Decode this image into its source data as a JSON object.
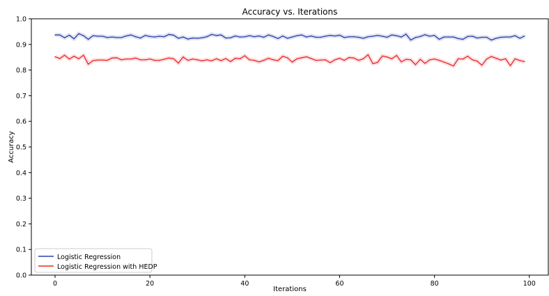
{
  "chart_data": {
    "type": "line",
    "title": "Accuracy vs. Iterations",
    "xlabel": "Iterations",
    "ylabel": "Accuracy",
    "xlim": [
      -5,
      104
    ],
    "ylim": [
      0.0,
      1.0
    ],
    "xticks": [
      0,
      20,
      40,
      60,
      80,
      100
    ],
    "xtick_labels": [
      "0",
      "20",
      "40",
      "60",
      "80",
      "100"
    ],
    "yticks": [
      0.0,
      0.1,
      0.2,
      0.3,
      0.4,
      0.5,
      0.6,
      0.7,
      0.8,
      0.9,
      1.0
    ],
    "ytick_labels": [
      "0.0",
      "0.1",
      "0.2",
      "0.3",
      "0.4",
      "0.5",
      "0.6",
      "0.7",
      "0.8",
      "0.9",
      "1.0"
    ],
    "grid": false,
    "legend": {
      "placement": "bottom-left"
    },
    "x": [
      0,
      1,
      2,
      3,
      4,
      5,
      6,
      7,
      8,
      9,
      10,
      11,
      12,
      13,
      14,
      15,
      16,
      17,
      18,
      19,
      20,
      21,
      22,
      23,
      24,
      25,
      26,
      27,
      28,
      29,
      30,
      31,
      32,
      33,
      34,
      35,
      36,
      37,
      38,
      39,
      40,
      41,
      42,
      43,
      44,
      45,
      46,
      47,
      48,
      49,
      50,
      51,
      52,
      53,
      54,
      55,
      56,
      57,
      58,
      59,
      60,
      61,
      62,
      63,
      64,
      65,
      66,
      67,
      68,
      69,
      70,
      71,
      72,
      73,
      74,
      75,
      76,
      77,
      78,
      79,
      80,
      81,
      82,
      83,
      84,
      85,
      86,
      87,
      88,
      89,
      90,
      91,
      92,
      93,
      94,
      95,
      96,
      97,
      98,
      99
    ],
    "series": [
      {
        "name": "Logistic Regression",
        "color": "#2a3ea8",
        "values": [
          0.937,
          0.937,
          0.926,
          0.936,
          0.922,
          0.942,
          0.934,
          0.92,
          0.934,
          0.932,
          0.932,
          0.927,
          0.929,
          0.927,
          0.927,
          0.933,
          0.937,
          0.93,
          0.925,
          0.935,
          0.931,
          0.929,
          0.932,
          0.93,
          0.939,
          0.936,
          0.924,
          0.929,
          0.921,
          0.925,
          0.924,
          0.926,
          0.93,
          0.939,
          0.935,
          0.937,
          0.925,
          0.926,
          0.933,
          0.929,
          0.93,
          0.934,
          0.93,
          0.933,
          0.928,
          0.937,
          0.931,
          0.923,
          0.933,
          0.924,
          0.929,
          0.934,
          0.937,
          0.929,
          0.933,
          0.928,
          0.928,
          0.932,
          0.935,
          0.933,
          0.936,
          0.927,
          0.93,
          0.93,
          0.928,
          0.924,
          0.93,
          0.932,
          0.935,
          0.932,
          0.928,
          0.937,
          0.934,
          0.929,
          0.94,
          0.917,
          0.927,
          0.931,
          0.938,
          0.932,
          0.935,
          0.92,
          0.929,
          0.929,
          0.929,
          0.923,
          0.92,
          0.931,
          0.932,
          0.925,
          0.928,
          0.928,
          0.917,
          0.924,
          0.928,
          0.929,
          0.929,
          0.934,
          0.924,
          0.933
        ]
      },
      {
        "name": "Logistic Regression with HEDP",
        "color": "#e8262a",
        "values": [
          0.852,
          0.845,
          0.858,
          0.843,
          0.854,
          0.844,
          0.858,
          0.823,
          0.837,
          0.839,
          0.839,
          0.838,
          0.847,
          0.848,
          0.84,
          0.843,
          0.843,
          0.847,
          0.84,
          0.84,
          0.843,
          0.838,
          0.838,
          0.842,
          0.847,
          0.844,
          0.827,
          0.851,
          0.838,
          0.843,
          0.84,
          0.836,
          0.84,
          0.836,
          0.844,
          0.837,
          0.845,
          0.833,
          0.846,
          0.844,
          0.856,
          0.84,
          0.838,
          0.832,
          0.838,
          0.846,
          0.84,
          0.837,
          0.854,
          0.848,
          0.831,
          0.844,
          0.848,
          0.852,
          0.845,
          0.838,
          0.839,
          0.84,
          0.829,
          0.84,
          0.846,
          0.838,
          0.849,
          0.847,
          0.838,
          0.844,
          0.86,
          0.825,
          0.83,
          0.855,
          0.851,
          0.844,
          0.857,
          0.832,
          0.842,
          0.84,
          0.821,
          0.842,
          0.826,
          0.84,
          0.843,
          0.838,
          0.831,
          0.824,
          0.816,
          0.844,
          0.843,
          0.854,
          0.84,
          0.835,
          0.819,
          0.843,
          0.853,
          0.846,
          0.839,
          0.844,
          0.817,
          0.844,
          0.837,
          0.833
        ]
      }
    ]
  }
}
